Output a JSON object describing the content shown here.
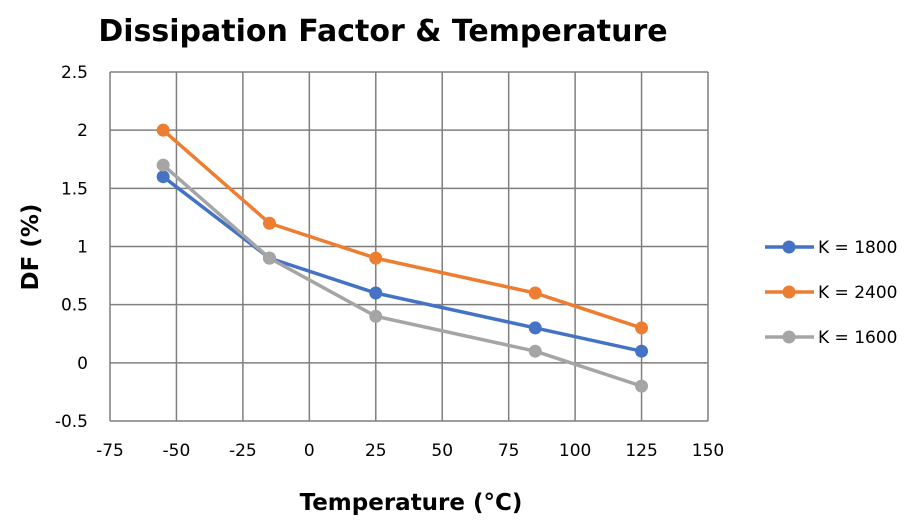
{
  "chart_data": {
    "type": "line",
    "title": "Dissipation Factor & Temperature",
    "xlabel": "Temperature (°C)",
    "ylabel": "DF (%)",
    "xlim": [
      -75,
      150
    ],
    "ylim": [
      -0.5,
      2.5
    ],
    "x_ticks": [
      "-75",
      "-50",
      "-25",
      "0",
      "25",
      "50",
      "75",
      "100",
      "125",
      "150"
    ],
    "y_ticks": [
      "-0.5",
      "0",
      "0.5",
      "1",
      "1.5",
      "2",
      "2.5"
    ],
    "grid": true,
    "legend_position": "right",
    "series": [
      {
        "name": "K = 1800",
        "color": "#4472c4",
        "points": [
          [
            -55,
            1.6
          ],
          [
            -15,
            0.9
          ],
          [
            25,
            0.6
          ],
          [
            85,
            0.3
          ],
          [
            125,
            0.1
          ]
        ]
      },
      {
        "name": "K = 2400",
        "color": "#ed7d31",
        "points": [
          [
            -55,
            2.0
          ],
          [
            -15,
            1.2
          ],
          [
            25,
            0.9
          ],
          [
            85,
            0.6
          ],
          [
            125,
            0.3
          ]
        ]
      },
      {
        "name": "K = 1600",
        "color": "#a5a5a5",
        "points": [
          [
            -55,
            1.7
          ],
          [
            -15,
            0.9
          ],
          [
            25,
            0.4
          ],
          [
            85,
            0.1
          ],
          [
            125,
            -0.2
          ]
        ]
      }
    ]
  }
}
